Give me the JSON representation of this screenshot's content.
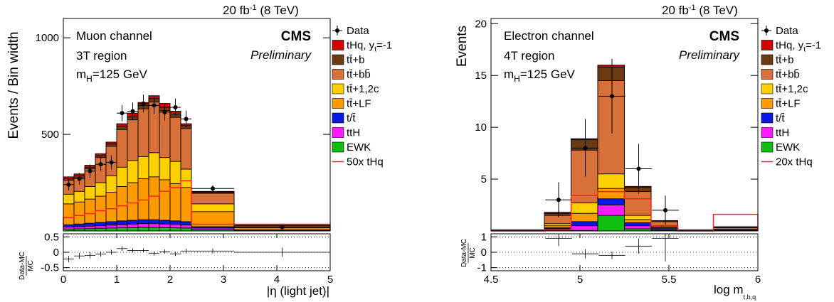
{
  "chart_data": [
    {
      "type": "bar",
      "stacked": true,
      "lumi": "20 fb",
      "lumi_sup": "-1",
      "lumi_tail": " (8 TeV)",
      "channel": "Muon channel",
      "region": "3T region",
      "mass_main": "m",
      "mass_sub": "H",
      "mass_tail": "=125 GeV",
      "experiment": "CMS",
      "status": "Preliminary",
      "xlabel": "|η (light jet)|",
      "ylabel": "Events / Bin width",
      "ratio_ylabel_num": "Data-MC",
      "ratio_ylabel_den": "MC",
      "xlim": [
        0,
        5
      ],
      "ylim": [
        0,
        1100
      ],
      "ratio_ylim": [
        -0.6,
        0.6
      ],
      "xticks": [
        "0",
        "1",
        "2",
        "3",
        "4",
        "5"
      ],
      "yticks": [
        {
          "v": 500,
          "label": "500"
        },
        {
          "v": 1000,
          "label": "1000"
        }
      ],
      "ratio_yticks": [
        {
          "v": 0.5,
          "label": "0.5"
        },
        {
          "v": 0,
          "label": "0"
        },
        {
          "v": -0.5,
          "label": "-0.5"
        }
      ],
      "bin_edges": [
        0,
        0.2,
        0.4,
        0.6,
        0.8,
        1.0,
        1.2,
        1.4,
        1.6,
        1.8,
        2.0,
        2.2,
        2.4,
        3.2,
        5.0
      ],
      "stack_totals": [
        [
          280,
          295,
          340,
          400,
          460,
          555,
          610,
          665,
          700,
          660,
          620,
          555,
          205,
          30
        ],
        [
          270,
          285,
          330,
          390,
          450,
          540,
          590,
          650,
          685,
          640,
          605,
          545,
          200,
          29
        ],
        [
          262,
          277,
          321,
          380,
          438,
          525,
          575,
          632,
          667,
          622,
          588,
          530,
          195,
          28
        ],
        [
          190,
          205,
          230,
          250,
          285,
          330,
          365,
          385,
          405,
          380,
          360,
          320,
          140,
          22
        ],
        [
          140,
          150,
          165,
          180,
          200,
          230,
          250,
          270,
          280,
          265,
          245,
          225,
          100,
          16
        ],
        [
          32,
          36,
          40,
          44,
          48,
          52,
          55,
          58,
          58,
          55,
          52,
          48,
          22,
          6
        ],
        [
          20,
          22,
          25,
          27,
          30,
          32,
          35,
          38,
          38,
          36,
          34,
          31,
          15,
          4
        ],
        [
          10,
          11,
          12,
          14,
          15,
          16,
          17,
          18,
          18,
          17,
          16,
          15,
          7,
          2
        ]
      ],
      "signal_50x": [
        70,
        80,
        90,
        105,
        115,
        130,
        145,
        160,
        180,
        205,
        225,
        260,
        35,
        35
      ],
      "data_x": [
        0.1,
        0.3,
        0.5,
        0.7,
        0.9,
        1.1,
        1.3,
        1.5,
        1.7,
        1.9,
        2.1,
        2.3,
        2.8,
        4.1
      ],
      "data_y": [
        240,
        270,
        310,
        345,
        355,
        610,
        620,
        660,
        650,
        615,
        640,
        580,
        220,
        20
      ],
      "data_err": [
        30,
        30,
        34,
        36,
        36,
        42,
        45,
        46,
        45,
        44,
        45,
        43,
        16,
        4
      ],
      "ratio_y": [
        -0.22,
        -0.12,
        -0.1,
        -0.06,
        0.0,
        0.12,
        0.06,
        0.06,
        -0.04,
        0.02,
        -0.05,
        0.04,
        0.04,
        0.0
      ],
      "ratio_err": [
        0.1,
        0.1,
        0.1,
        0.08,
        0.08,
        0.08,
        0.07,
        0.07,
        0.07,
        0.07,
        0.07,
        0.08,
        0.08,
        0.15
      ]
    },
    {
      "type": "bar",
      "stacked": true,
      "lumi": "20 fb",
      "lumi_sup": "-1",
      "lumi_tail": " (8 TeV)",
      "channel": "Electron channel",
      "region": "4T region",
      "mass_main": "m",
      "mass_sub": "H",
      "mass_tail": "=125 GeV",
      "experiment": "CMS",
      "status": "Preliminary",
      "xlabel": "log m",
      "xlabel_sub": "t,b,q",
      "ylabel": "Events",
      "ratio_ylabel_num": "Data-MC",
      "ratio_ylabel_den": "MC",
      "xlim": [
        4.5,
        6.0
      ],
      "ylim": [
        0,
        20.5
      ],
      "ratio_ylim": [
        -1.2,
        1.2
      ],
      "xticks": [
        "4.5",
        "5",
        "5.5",
        "6"
      ],
      "yticks": [
        {
          "v": 5,
          "label": "5"
        },
        {
          "v": 10,
          "label": "10"
        },
        {
          "v": 15,
          "label": "15"
        },
        {
          "v": 20,
          "label": "20"
        }
      ],
      "ratio_yticks": [
        {
          "v": 1,
          "label": "1"
        },
        {
          "v": 0,
          "label": "0"
        },
        {
          "v": -1,
          "label": "-1"
        }
      ],
      "bin_edges": [
        4.5,
        4.8,
        4.95,
        5.1,
        5.25,
        5.4,
        5.55,
        5.75,
        6.0
      ],
      "stack_totals": [
        [
          0.1,
          1.8,
          8.9,
          16.0,
          4.3,
          1.0,
          0.1,
          0.4
        ],
        [
          0.1,
          1.7,
          8.8,
          15.8,
          4.2,
          1.0,
          0.1,
          0.4
        ],
        [
          0.1,
          1.5,
          7.8,
          14.5,
          3.8,
          0.9,
          0.1,
          0.3
        ],
        [
          0.05,
          0.7,
          2.7,
          5.5,
          1.5,
          0.5,
          0.05,
          0.15
        ],
        [
          0.05,
          0.5,
          1.7,
          4.1,
          1.1,
          0.4,
          0.05,
          0.12
        ],
        [
          0.02,
          0.3,
          0.9,
          3.1,
          0.8,
          0.3,
          0.02,
          0.06
        ],
        [
          0.02,
          0.2,
          0.5,
          2.5,
          0.5,
          0.15,
          0.02,
          0.04
        ],
        [
          0.0,
          0.05,
          0.05,
          1.5,
          0.2,
          0.05,
          0.0,
          0.0
        ]
      ],
      "signal_20x": [
        0.0,
        0.1,
        3.4,
        3.8,
        3.1,
        0.5,
        0.0,
        1.6
      ],
      "data_x": [
        4.88,
        5.03,
        5.18,
        5.33,
        5.48
      ],
      "data_y": [
        3.0,
        8.0,
        13.0,
        6.0,
        2.0
      ],
      "data_err": [
        1.7,
        2.8,
        3.6,
        2.4,
        1.4
      ],
      "ratio_y": [
        0.9,
        -0.1,
        -0.2,
        0.4,
        0.9
      ],
      "ratio_err": [
        0.5,
        0.3,
        0.25,
        0.5,
        1.5
      ]
    }
  ],
  "legends": [
    {
      "items": [
        {
          "label": "Data",
          "kind": "marker",
          "color": "#000000"
        },
        {
          "label": "tHq, y",
          "label_sub": "t",
          "label_tail": "=-1",
          "kind": "box",
          "color": "#d40000"
        },
        {
          "label": "tt̄+b",
          "kind": "box",
          "color": "#6b3a10"
        },
        {
          "label": "tt̄+bb̄",
          "kind": "box",
          "color": "#d8703a"
        },
        {
          "label": "tt̄+1,2c",
          "kind": "box",
          "color": "#ffd000"
        },
        {
          "label": "tt̄+LF",
          "kind": "box",
          "color": "#ff9a00"
        },
        {
          "label": "t/t̄",
          "kind": "box",
          "color": "#0a18e6"
        },
        {
          "label": "ttH",
          "kind": "box",
          "color": "#ff1aff"
        },
        {
          "label": "EWK",
          "kind": "box",
          "color": "#10c010"
        },
        {
          "label": "50x tHq",
          "kind": "line",
          "color": "#ff2020"
        }
      ]
    },
    {
      "items": [
        {
          "label": "Data",
          "kind": "marker",
          "color": "#000000"
        },
        {
          "label": "tHq, y",
          "label_sub": "t",
          "label_tail": "=-1",
          "kind": "box",
          "color": "#d40000"
        },
        {
          "label": "tt̄+b",
          "kind": "box",
          "color": "#6b3a10"
        },
        {
          "label": "tt̄+bb̄",
          "kind": "box",
          "color": "#d8703a"
        },
        {
          "label": "tt̄+1,2c",
          "kind": "box",
          "color": "#ffd000"
        },
        {
          "label": "tt̄+LF",
          "kind": "box",
          "color": "#ff9a00"
        },
        {
          "label": "t/t̄",
          "kind": "box",
          "color": "#0a18e6"
        },
        {
          "label": "ttH",
          "kind": "box",
          "color": "#ff1aff"
        },
        {
          "label": "EWK",
          "kind": "box",
          "color": "#10c010"
        },
        {
          "label": "20x tHq",
          "kind": "line",
          "color": "#ff2020"
        }
      ]
    }
  ],
  "stack_colors": [
    "#d40000",
    "#6b3a10",
    "#d8703a",
    "#ffd000",
    "#ff9a00",
    "#0a18e6",
    "#ff1aff",
    "#10c010"
  ]
}
